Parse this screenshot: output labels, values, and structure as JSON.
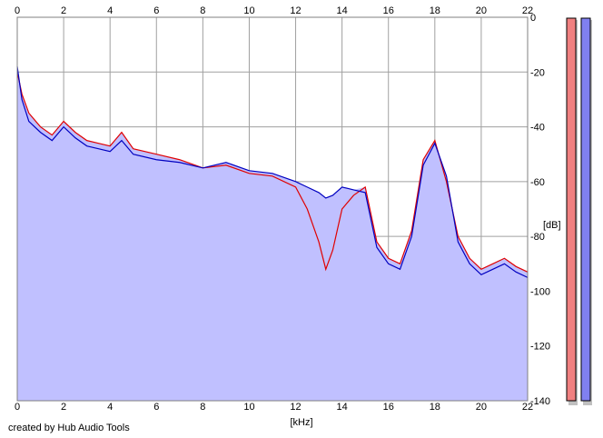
{
  "footer": {
    "credit": "created by Hub Audio Tools"
  },
  "chart_data": {
    "type": "area",
    "title": "",
    "xlabel": "[kHz]",
    "ylabel": "[dB]",
    "xlim": [
      0,
      22
    ],
    "ylim": [
      -140,
      0
    ],
    "x_ticks": [
      0,
      2,
      4,
      6,
      8,
      10,
      12,
      14,
      16,
      18,
      20,
      22
    ],
    "y_ticks": [
      0,
      -20,
      -40,
      -60,
      -80,
      -100,
      -120,
      -140
    ],
    "x_tick_labels": [
      "0",
      "2",
      "4",
      "6",
      "8",
      "10",
      "12",
      "14",
      "16",
      "18",
      "20",
      "22"
    ],
    "y_tick_labels": [
      "0",
      "-20",
      "-40",
      "-60",
      "-80",
      "-100",
      "-120",
      "-140"
    ],
    "grid": true,
    "colors": {
      "plot_background": "#ffffff",
      "area_fill": "#c0c0ff",
      "grid": "#a0a0a0",
      "series_a": "#e00000",
      "series_b": "#0000c0",
      "meter_left": "#f08080",
      "meter_right": "#8080f0"
    },
    "series": [
      {
        "color": "#e00000",
        "x": [
          0,
          0.2,
          0.5,
          1,
          1.5,
          2,
          2.5,
          3,
          3.5,
          4,
          4.5,
          5,
          6,
          7,
          8,
          9,
          10,
          11,
          12,
          12.5,
          13,
          13.3,
          13.6,
          14,
          14.5,
          15,
          15.5,
          16,
          16.5,
          17,
          17.5,
          18,
          18.5,
          19,
          19.5,
          20,
          20.5,
          21,
          21.5,
          22
        ],
        "values": [
          -20,
          -28,
          -35,
          -40,
          -43,
          -38,
          -42,
          -45,
          -46,
          -47,
          -42,
          -48,
          -50,
          -52,
          -55,
          -54,
          -57,
          -58,
          -62,
          -70,
          -82,
          -92,
          -85,
          -70,
          -65,
          -62,
          -82,
          -88,
          -90,
          -78,
          -52,
          -45,
          -60,
          -80,
          -88,
          -92,
          -90,
          -88,
          -91,
          -93
        ]
      },
      {
        "color": "#0000c0",
        "x": [
          0,
          0.2,
          0.5,
          1,
          1.5,
          2,
          2.5,
          3,
          3.5,
          4,
          4.5,
          5,
          6,
          7,
          8,
          9,
          10,
          11,
          12,
          12.5,
          13,
          13.3,
          13.6,
          14,
          14.5,
          15,
          15.5,
          16,
          16.5,
          17,
          17.5,
          18,
          18.5,
          19,
          19.5,
          20,
          20.5,
          21,
          21.5,
          22
        ],
        "values": [
          -18,
          -30,
          -38,
          -42,
          -45,
          -40,
          -44,
          -47,
          -48,
          -49,
          -45,
          -50,
          -52,
          -53,
          -55,
          -53,
          -56,
          -57,
          -60,
          -62,
          -64,
          -66,
          -65,
          -62,
          -63,
          -64,
          -84,
          -90,
          -92,
          -80,
          -54,
          -46,
          -58,
          -82,
          -90,
          -94,
          -92,
          -90,
          -93,
          -95
        ]
      }
    ]
  }
}
